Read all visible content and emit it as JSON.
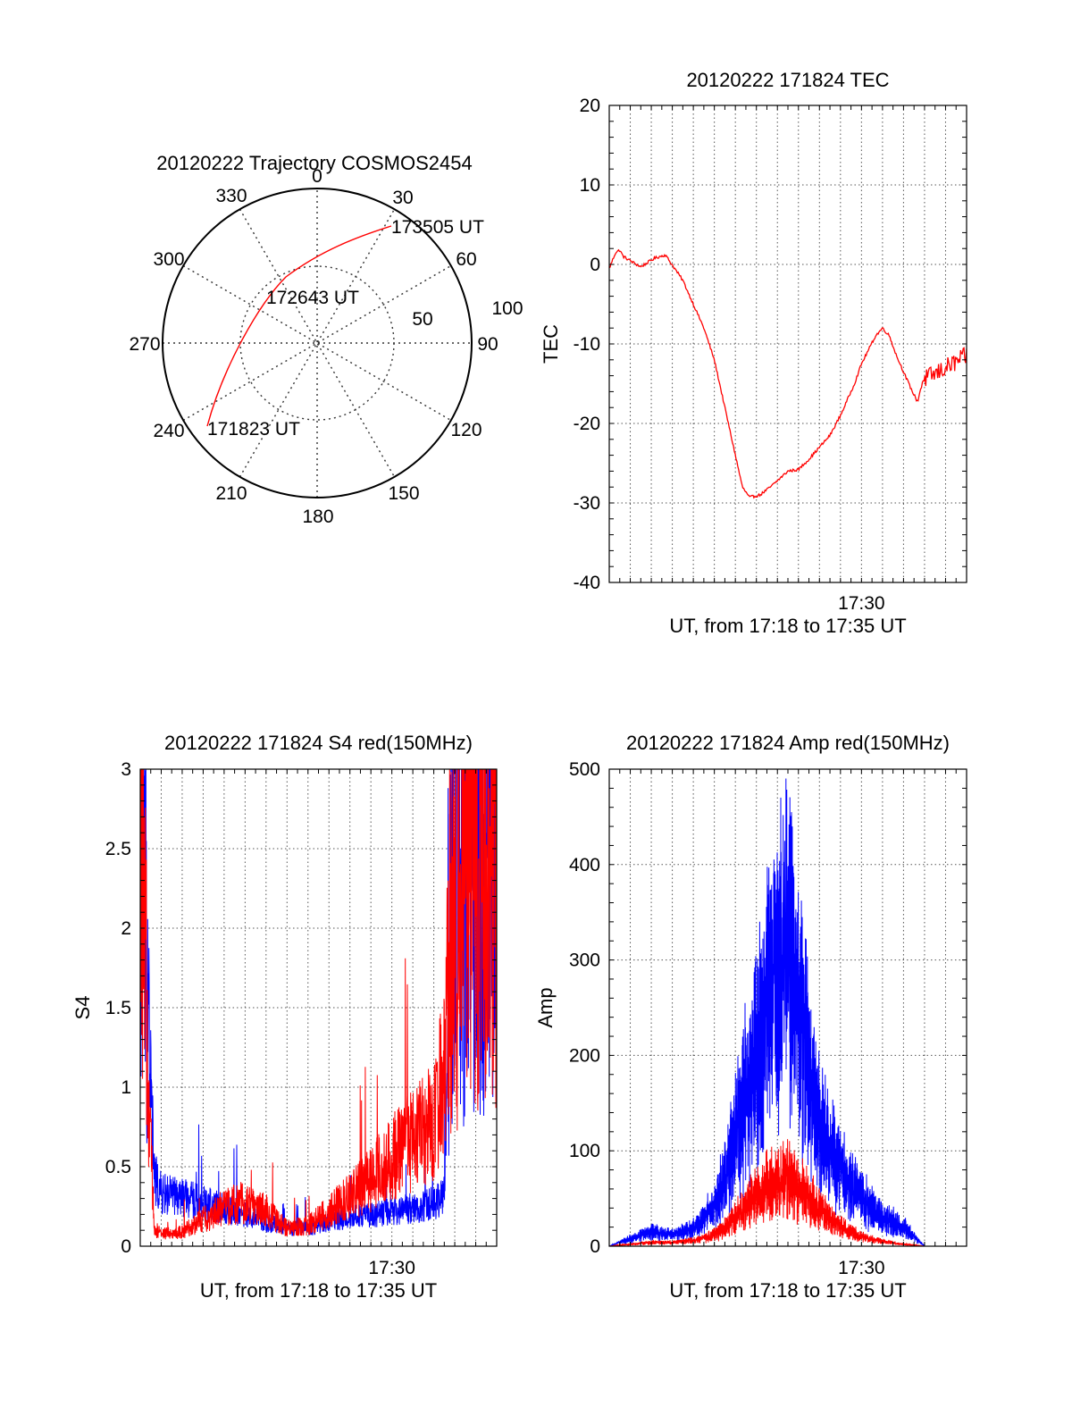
{
  "polar_panel": {
    "title": "20120222 Trajectory COSMOS2454",
    "azimuth_labels": [
      "0",
      "30",
      "60",
      "90",
      "120",
      "150",
      "180",
      "210",
      "240",
      "270",
      "300",
      "330"
    ],
    "elevation_labels": [
      "50",
      "100"
    ],
    "annotations": [
      "173505 UT",
      "172643 UT",
      "171823 UT"
    ],
    "colors": {
      "track": "#ff0000"
    }
  },
  "chart_data": [
    {
      "type": "line",
      "title": "20120222 171824 TEC",
      "xlabel": "UT, from 17:18 to 17:35 UT",
      "ylabel": "TEC",
      "xlim": [
        "17:18",
        "17:35"
      ],
      "ylim": [
        -40,
        20
      ],
      "yticks": [
        "20",
        "10",
        "0",
        "-10",
        "-20",
        "-30",
        "-40"
      ],
      "xtick_label": "17:30",
      "grid": true,
      "series": [
        {
          "color": "#ff0000",
          "x": [
            "17:18:00",
            "17:18:18",
            "17:18:30",
            "17:18:40",
            "17:19:10",
            "17:19:30",
            "17:20:10",
            "17:20:40",
            "17:21:30",
            "17:22:00",
            "17:22:30",
            "17:23:00",
            "17:23:20",
            "17:23:40",
            "17:24:00",
            "17:24:20",
            "17:24:40",
            "17:25:10",
            "17:25:40",
            "17:26:10",
            "17:26:30",
            "17:27:00",
            "17:27:30",
            "17:28:00",
            "17:28:30",
            "17:29:00",
            "17:29:20",
            "17:29:40",
            "17:30:00",
            "17:30:40",
            "17:31:00",
            "17:31:20",
            "17:31:40",
            "17:32:00",
            "17:32:20",
            "17:32:40",
            "17:32:55",
            "17:33:10",
            "17:33:30",
            "17:34:00",
            "17:34:30",
            "17:35:00"
          ],
          "values": [
            -0.5,
            1.5,
            1.8,
            1.0,
            0.2,
            -0.3,
            0.8,
            1.2,
            -2.0,
            -5.0,
            -8.0,
            -12.0,
            -16.0,
            -20.0,
            -24.0,
            -28.0,
            -29.3,
            -29.0,
            -28.0,
            -26.8,
            -26.0,
            -25.8,
            -24.5,
            -23.0,
            -21.5,
            -19.0,
            -17.0,
            -15.0,
            -12.5,
            -9.0,
            -8.0,
            -9.0,
            -11.5,
            -13.5,
            -15.5,
            -17.3,
            -14.5,
            -14.2,
            -13.8,
            -13.0,
            -12.3,
            -11.5
          ]
        }
      ]
    },
    {
      "type": "line",
      "title": "20120222 171824 S4 red(150MHz)",
      "xlabel": "UT, from 17:18 to 17:35 UT",
      "ylabel": "S4",
      "xlim": [
        "17:18",
        "17:35"
      ],
      "ylim": [
        0,
        3
      ],
      "yticks": [
        "3",
        "2.5",
        "2",
        "1.5",
        "1",
        "0.5",
        "0"
      ],
      "xtick_label": "17:30",
      "grid": true,
      "series": [
        {
          "color": "#0000ff",
          "x": [
            "17:18:00",
            "17:18:20",
            "17:18:40",
            "17:19:00",
            "17:20:00",
            "17:21:00",
            "17:22:00",
            "17:23:00",
            "17:24:00",
            "17:25:00",
            "17:26:00",
            "17:27:00",
            "17:28:00",
            "17:29:00",
            "17:30:00",
            "17:31:00",
            "17:32:00",
            "17:32:30",
            "17:33:00",
            "17:33:30",
            "17:34:00",
            "17:35:00"
          ],
          "values": [
            2.5,
            1.5,
            0.4,
            0.3,
            0.28,
            0.25,
            0.22,
            0.18,
            0.14,
            0.1,
            0.1,
            0.14,
            0.17,
            0.18,
            0.2,
            0.22,
            0.25,
            0.3,
            2.5,
            2.0,
            2.3,
            2.2
          ]
        },
        {
          "color": "#ff0000",
          "x": [
            "17:18:00",
            "17:18:20",
            "17:18:40",
            "17:19:00",
            "17:20:00",
            "17:21:00",
            "17:22:00",
            "17:23:00",
            "17:24:00",
            "17:25:00",
            "17:26:00",
            "17:27:00",
            "17:28:00",
            "17:29:00",
            "17:30:00",
            "17:31:00",
            "17:32:00",
            "17:32:30",
            "17:33:00",
            "17:33:30",
            "17:34:00",
            "17:35:00"
          ],
          "values": [
            3.0,
            1.0,
            0.1,
            0.07,
            0.08,
            0.15,
            0.22,
            0.25,
            0.2,
            0.1,
            0.12,
            0.2,
            0.28,
            0.38,
            0.5,
            0.6,
            0.7,
            1.0,
            1.8,
            2.1,
            2.2,
            2.3
          ]
        }
      ]
    },
    {
      "type": "line",
      "title": "20120222 171824 Amp red(150MHz)",
      "xlabel": "UT, from 17:18 to 17:35 UT",
      "ylabel": "Amp",
      "xlim": [
        "17:18",
        "17:35"
      ],
      "ylim": [
        0,
        500
      ],
      "yticks": [
        "500",
        "400",
        "300",
        "200",
        "100",
        "0"
      ],
      "xtick_label": "17:30",
      "grid": true,
      "series": [
        {
          "color": "#0000ff",
          "x": [
            "17:18:00",
            "17:19:00",
            "17:20:00",
            "17:21:00",
            "17:22:00",
            "17:23:00",
            "17:23:30",
            "17:24:00",
            "17:24:30",
            "17:25:00",
            "17:25:30",
            "17:26:00",
            "17:26:30",
            "17:27:00",
            "17:27:30",
            "17:28:00",
            "17:29:00",
            "17:30:00",
            "17:31:00",
            "17:32:00",
            "17:33:00",
            "17:34:00",
            "17:35:00"
          ],
          "values": [
            0,
            8,
            15,
            12,
            18,
            40,
            70,
            110,
            160,
            200,
            240,
            280,
            320,
            260,
            180,
            120,
            80,
            50,
            30,
            20,
            0,
            0,
            0
          ]
        },
        {
          "color": "#ff0000",
          "x": [
            "17:18:00",
            "17:19:00",
            "17:20:00",
            "17:21:00",
            "17:22:00",
            "17:23:00",
            "17:23:30",
            "17:24:00",
            "17:24:30",
            "17:25:00",
            "17:25:30",
            "17:26:00",
            "17:26:30",
            "17:27:00",
            "17:27:30",
            "17:28:00",
            "17:29:00",
            "17:30:00",
            "17:31:00",
            "17:32:00",
            "17:33:00",
            "17:34:00",
            "17:35:00"
          ],
          "values": [
            0,
            2,
            4,
            4,
            6,
            12,
            20,
            30,
            42,
            52,
            60,
            66,
            70,
            62,
            50,
            38,
            20,
            10,
            5,
            2,
            0,
            0,
            0
          ]
        }
      ]
    }
  ]
}
